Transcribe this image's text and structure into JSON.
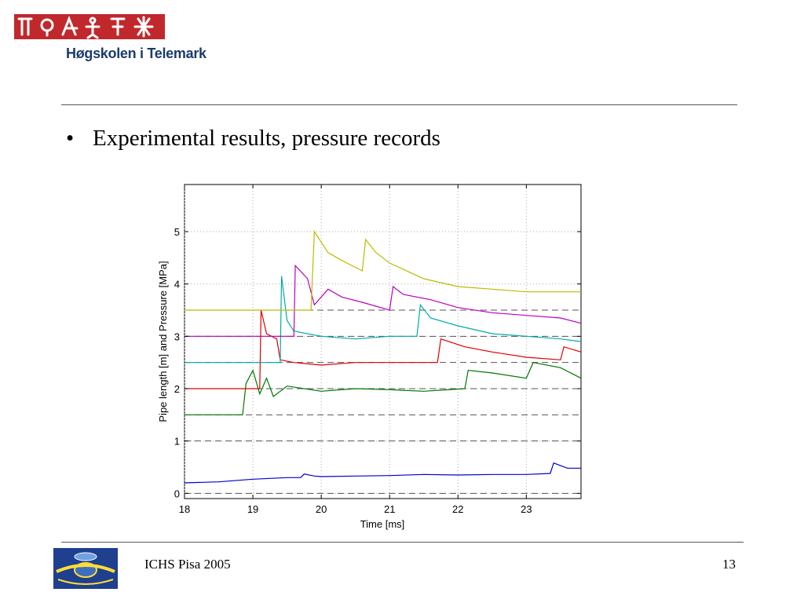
{
  "header": {
    "logo_icon": "telemark-runes-logo-icon",
    "org_name": "Høgskolen i Telemark"
  },
  "slide": {
    "bullet_symbol": "•",
    "bullet_text": "Experimental results, pressure records"
  },
  "footer": {
    "logo_icon": "ichs-conference-logo-icon",
    "left_text": "ICHS Pisa 2005",
    "page_number": "13"
  },
  "chart_data": {
    "type": "line",
    "xlabel": "Time [ms]",
    "ylabel": "Pipe length [m] and Pressure [MPa]",
    "xlim": [
      18,
      23.8
    ],
    "ylim": [
      -0.1,
      5.9
    ],
    "xticks": [
      18,
      19,
      20,
      21,
      22,
      23
    ],
    "yticks": [
      0,
      1,
      2,
      3,
      4,
      5
    ],
    "grid": true,
    "baselines": [
      0,
      1,
      1.5,
      2,
      2.5,
      3,
      3.5
    ],
    "series": [
      {
        "color": "#0000cc",
        "x": [
          18,
          18.5,
          19,
          19.5,
          19.7,
          19.75,
          19.9,
          20.0,
          20.5,
          21,
          21.5,
          22,
          22.5,
          23,
          23.35,
          23.4,
          23.6,
          23.8
        ],
        "y": [
          0.2,
          0.22,
          0.27,
          0.3,
          0.3,
          0.37,
          0.33,
          0.32,
          0.33,
          0.34,
          0.36,
          0.35,
          0.36,
          0.36,
          0.38,
          0.58,
          0.48,
          0.48
        ]
      },
      {
        "color": "#007700",
        "x": [
          18,
          18.85,
          18.9,
          19.0,
          19.1,
          19.2,
          19.3,
          19.5,
          20,
          20.5,
          21,
          21.5,
          22.1,
          22.15,
          22.5,
          23,
          23.1,
          23.5,
          23.8
        ],
        "y": [
          1.5,
          1.5,
          2.1,
          2.35,
          1.9,
          2.2,
          1.85,
          2.05,
          1.95,
          2.0,
          1.98,
          1.95,
          2.0,
          2.35,
          2.3,
          2.2,
          2.5,
          2.4,
          2.2
        ]
      },
      {
        "color": "#dd0000",
        "x": [
          18,
          19.1,
          19.12,
          19.2,
          19.35,
          19.4,
          19.6,
          20,
          20.5,
          21,
          21.7,
          21.75,
          22.1,
          22.5,
          23,
          23.5,
          23.55,
          23.8
        ],
        "y": [
          2.0,
          2.0,
          3.5,
          3.05,
          2.95,
          2.55,
          2.5,
          2.45,
          2.5,
          2.5,
          2.5,
          2.95,
          2.8,
          2.7,
          2.6,
          2.55,
          2.8,
          2.7
        ]
      },
      {
        "color": "#00aaaa",
        "x": [
          18,
          19.4,
          19.42,
          19.5,
          19.6,
          20,
          20.5,
          21,
          21.4,
          21.45,
          21.6,
          22,
          22.5,
          23,
          23.5,
          23.8
        ],
        "y": [
          2.5,
          2.5,
          4.15,
          3.3,
          3.1,
          3.0,
          2.95,
          3.0,
          3.0,
          3.6,
          3.35,
          3.2,
          3.05,
          3.0,
          2.95,
          2.9
        ]
      },
      {
        "color": "#bb00bb",
        "x": [
          18,
          19.6,
          19.62,
          19.8,
          19.9,
          20.1,
          20.3,
          20.6,
          21,
          21.05,
          21.2,
          21.6,
          22,
          22.5,
          23,
          23.5,
          23.8
        ],
        "y": [
          3.0,
          3.0,
          4.35,
          4.1,
          3.6,
          3.9,
          3.75,
          3.65,
          3.5,
          3.95,
          3.8,
          3.7,
          3.55,
          3.45,
          3.4,
          3.35,
          3.25
        ]
      },
      {
        "color": "#bbbb00",
        "x": [
          18,
          19.85,
          19.9,
          20.1,
          20.3,
          20.6,
          20.65,
          20.8,
          21,
          21.5,
          22,
          22.5,
          23,
          23.5,
          23.8
        ],
        "y": [
          3.5,
          3.5,
          5.0,
          4.6,
          4.45,
          4.25,
          4.85,
          4.6,
          4.4,
          4.1,
          3.95,
          3.9,
          3.85,
          3.85,
          3.85
        ]
      }
    ]
  }
}
